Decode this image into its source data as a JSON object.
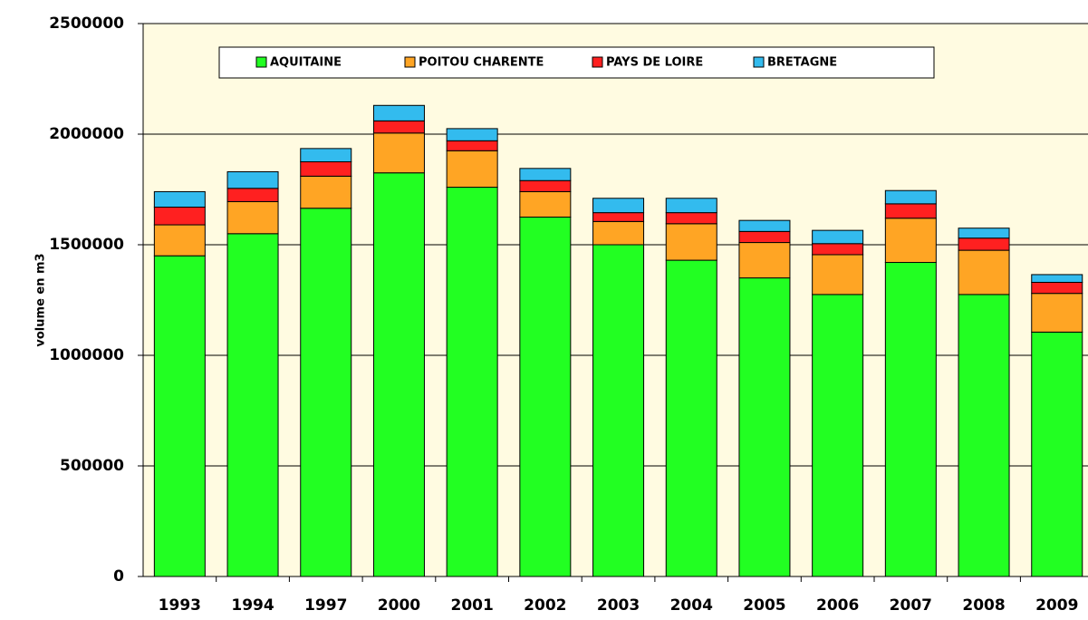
{
  "chart_data": {
    "type": "stacked_bar",
    "y_label": "volume en m3",
    "categories": [
      "1993",
      "1994",
      "1997",
      "2000",
      "2001",
      "2002",
      "2003",
      "2004",
      "2005",
      "2006",
      "2007",
      "2008",
      "2009"
    ],
    "series": [
      {
        "name": "AQUITAINE",
        "color": "#22ff22",
        "values": [
          1450000,
          1550000,
          1665000,
          1825000,
          1760000,
          1625000,
          1500000,
          1430000,
          1350000,
          1275000,
          1420000,
          1275000,
          1105000
        ]
      },
      {
        "name": "POITOU CHARENTE",
        "color": "#ffa524",
        "values": [
          140000,
          145000,
          145000,
          180000,
          165000,
          115000,
          105000,
          165000,
          160000,
          180000,
          200000,
          200000,
          175000
        ]
      },
      {
        "name": "PAYS DE LOIRE",
        "color": "#ff2020",
        "values": [
          80000,
          60000,
          65000,
          55000,
          45000,
          50000,
          40000,
          50000,
          50000,
          50000,
          65000,
          55000,
          50000
        ]
      },
      {
        "name": "BRETAGNE",
        "color": "#33bbee",
        "values": [
          70000,
          75000,
          60000,
          70000,
          55000,
          55000,
          65000,
          65000,
          50000,
          60000,
          60000,
          45000,
          35000
        ]
      }
    ],
    "ylim": [
      0,
      2500000
    ],
    "yticks": [
      0,
      500000,
      1000000,
      1500000,
      2000000,
      2500000
    ],
    "grid": true,
    "legend": "top"
  }
}
